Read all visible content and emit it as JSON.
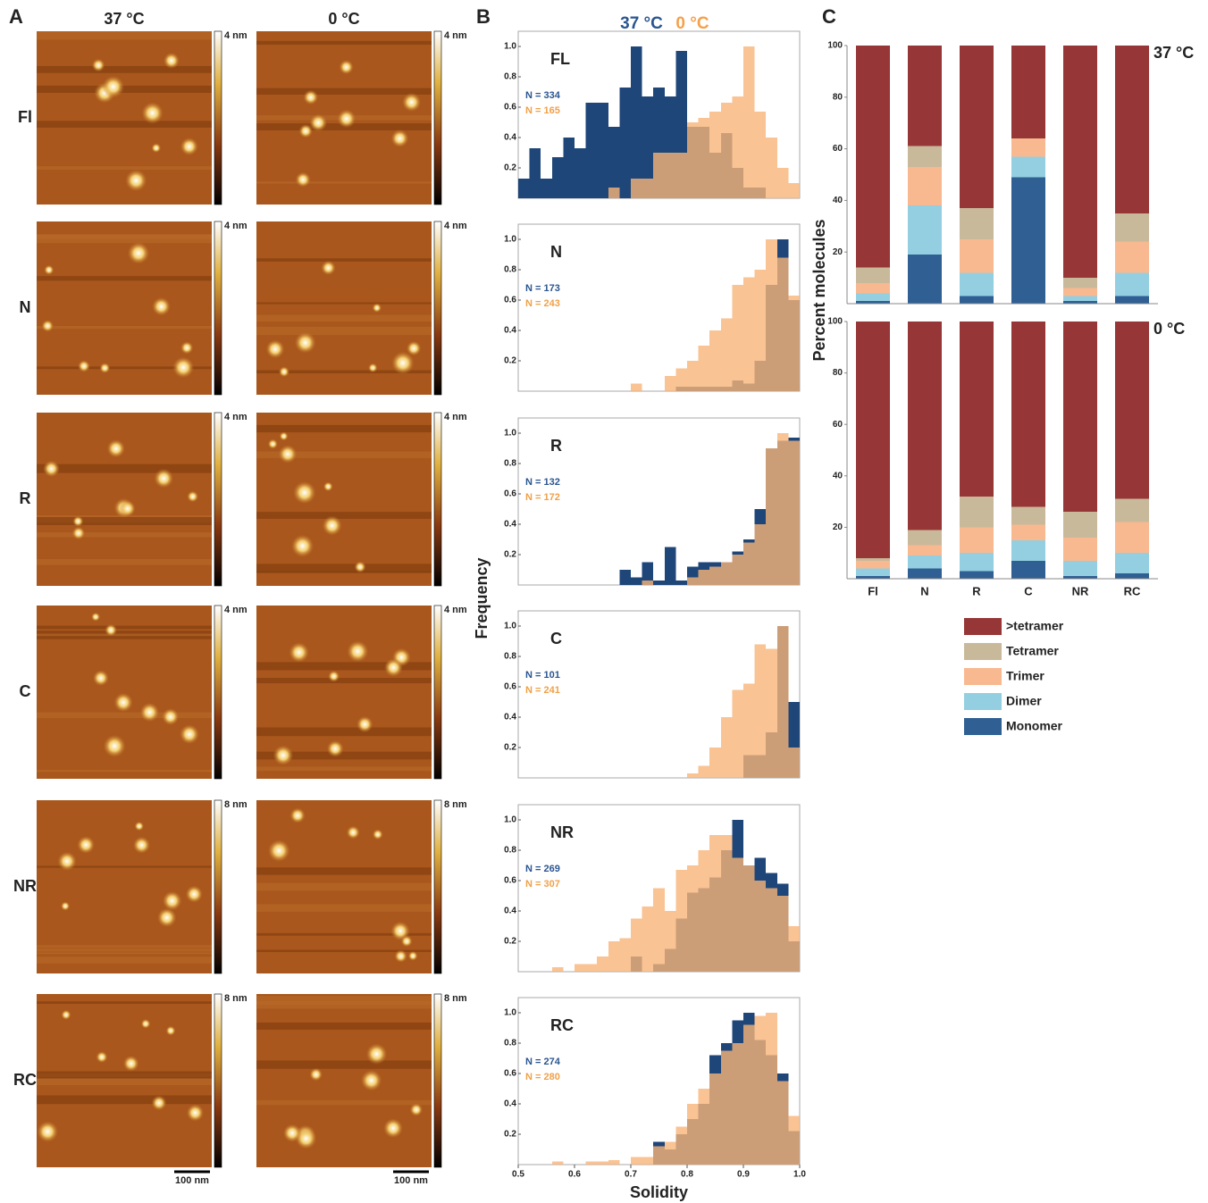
{
  "panels": {
    "a": "A",
    "b": "B",
    "c": "C"
  },
  "figure_a": {
    "columns": [
      "37 °C",
      "0 °C"
    ],
    "rows": [
      {
        "label": "Fl",
        "scale": "4 nm"
      },
      {
        "label": "N",
        "scale": "4 nm"
      },
      {
        "label": "R",
        "scale": "4 nm"
      },
      {
        "label": "C",
        "scale": "4 nm"
      },
      {
        "label": "NR",
        "scale": "8 nm"
      },
      {
        "label": "RC",
        "scale": "8 nm"
      }
    ],
    "scale_bar": "100 nm"
  },
  "chart_data": [
    {
      "type": "histogram",
      "title": "FL",
      "ylabel": "Frequency",
      "xlim": [
        0.5,
        1
      ],
      "ylim": [
        0,
        1.1
      ],
      "yticks": [
        0.2,
        0.4,
        0.6,
        0.8,
        {
          "value": 1,
          "label": "1.0"
        }
      ],
      "bins": [
        0.5,
        0.52,
        0.54,
        0.56,
        0.58,
        0.6,
        0.62,
        0.64,
        0.66,
        0.68,
        0.7,
        0.72,
        0.74,
        0.76,
        0.78,
        0.8,
        0.82,
        0.84,
        0.86,
        0.88,
        0.9,
        0.92,
        0.94,
        0.96,
        0.98,
        1
      ],
      "series": [
        {
          "name": "37 °C",
          "color": "#1f4679",
          "n_label": "N = 334",
          "values": [
            0.13,
            0.33,
            0.13,
            0.27,
            0.4,
            0.33,
            0.63,
            0.63,
            0.47,
            0.73,
            1,
            0.67,
            0.73,
            0.67,
            0.97,
            0.47,
            0.47,
            0.3,
            0.43,
            0.2,
            0.07,
            0.07,
            0,
            0,
            0
          ]
        },
        {
          "name": "0 °C",
          "color": "#f8b478",
          "n_label": "N = 165",
          "values": [
            0,
            0,
            0,
            0,
            0,
            0,
            0,
            0,
            0.07,
            0,
            0.13,
            0.13,
            0.3,
            0.3,
            0.3,
            0.5,
            0.53,
            0.57,
            0.63,
            0.67,
            1,
            0.57,
            0.4,
            0.2,
            0.1
          ]
        }
      ]
    },
    {
      "type": "histogram",
      "title": "N",
      "xlim": [
        0.5,
        1
      ],
      "ylim": [
        0,
        1.1
      ],
      "yticks": [
        0.2,
        0.4,
        0.6,
        0.8,
        {
          "value": 1,
          "label": "1.0"
        }
      ],
      "bins": [
        0.5,
        0.52,
        0.54,
        0.56,
        0.58,
        0.6,
        0.62,
        0.64,
        0.66,
        0.68,
        0.7,
        0.72,
        0.74,
        0.76,
        0.78,
        0.8,
        0.82,
        0.84,
        0.86,
        0.88,
        0.9,
        0.92,
        0.94,
        0.96,
        0.98,
        1
      ],
      "series": [
        {
          "color": "#1f4679",
          "n_label": "N = 173",
          "values": [
            0,
            0,
            0,
            0,
            0,
            0,
            0,
            0,
            0,
            0,
            0,
            0,
            0,
            0,
            0.03,
            0.03,
            0.03,
            0.03,
            0.03,
            0.07,
            0.05,
            0.2,
            0.7,
            1,
            0.6
          ]
        },
        {
          "color": "#f8b478",
          "n_label": "N = 243",
          "values": [
            0,
            0,
            0,
            0,
            0,
            0,
            0,
            0,
            0,
            0,
            0.05,
            0,
            0,
            0.1,
            0.15,
            0.2,
            0.3,
            0.4,
            0.48,
            0.7,
            0.75,
            0.8,
            1,
            0.88,
            0.63
          ]
        }
      ]
    },
    {
      "type": "histogram",
      "title": "R",
      "xlim": [
        0.5,
        1
      ],
      "ylim": [
        0,
        1.1
      ],
      "yticks": [
        0.2,
        0.4,
        0.6,
        0.8,
        {
          "value": 1,
          "label": "1.0"
        }
      ],
      "bins": [
        0.5,
        0.52,
        0.54,
        0.56,
        0.58,
        0.6,
        0.62,
        0.64,
        0.66,
        0.68,
        0.7,
        0.72,
        0.74,
        0.76,
        0.78,
        0.8,
        0.82,
        0.84,
        0.86,
        0.88,
        0.9,
        0.92,
        0.94,
        0.96,
        0.98,
        1
      ],
      "series": [
        {
          "color": "#1f4679",
          "n_label": "N = 132",
          "values": [
            0,
            0,
            0,
            0,
            0,
            0,
            0,
            0,
            0,
            0.1,
            0.05,
            0.15,
            0.03,
            0.25,
            0.03,
            0.12,
            0.15,
            0.15,
            0.15,
            0.22,
            0.3,
            0.5,
            0.9,
            0.95,
            0.97
          ]
        },
        {
          "color": "#f8b478",
          "n_label": "N = 172",
          "values": [
            0,
            0,
            0,
            0,
            0,
            0,
            0,
            0,
            0,
            0,
            0,
            0.03,
            0,
            0,
            0,
            0.05,
            0.1,
            0.12,
            0.15,
            0.2,
            0.28,
            0.4,
            0.9,
            1,
            0.95
          ]
        }
      ]
    },
    {
      "type": "histogram",
      "title": "C",
      "xlim": [
        0.5,
        1
      ],
      "ylim": [
        0,
        1.1
      ],
      "yticks": [
        0.2,
        0.4,
        0.6,
        0.8,
        {
          "value": 1,
          "label": "1.0"
        }
      ],
      "bins": [
        0.5,
        0.52,
        0.54,
        0.56,
        0.58,
        0.6,
        0.62,
        0.64,
        0.66,
        0.68,
        0.7,
        0.72,
        0.74,
        0.76,
        0.78,
        0.8,
        0.82,
        0.84,
        0.86,
        0.88,
        0.9,
        0.92,
        0.94,
        0.96,
        0.98,
        1
      ],
      "series": [
        {
          "color": "#1f4679",
          "n_label": "N = 101",
          "values": [
            0,
            0,
            0,
            0,
            0,
            0,
            0,
            0,
            0,
            0,
            0,
            0,
            0,
            0,
            0,
            0,
            0,
            0,
            0,
            0,
            0.15,
            0.15,
            0.3,
            1,
            0.5
          ]
        },
        {
          "color": "#f8b478",
          "n_label": "N = 241",
          "values": [
            0,
            0,
            0,
            0,
            0,
            0,
            0,
            0,
            0,
            0,
            0,
            0,
            0,
            0,
            0,
            0.03,
            0.08,
            0.2,
            0.4,
            0.58,
            0.62,
            0.88,
            0.85,
            1,
            0.2
          ]
        }
      ]
    },
    {
      "type": "histogram",
      "title": "NR",
      "xlim": [
        0.5,
        1
      ],
      "ylim": [
        0,
        1.1
      ],
      "yticks": [
        0.2,
        0.4,
        0.6,
        0.8,
        {
          "value": 1,
          "label": "1.0"
        }
      ],
      "bins": [
        0.5,
        0.52,
        0.54,
        0.56,
        0.58,
        0.6,
        0.62,
        0.64,
        0.66,
        0.68,
        0.7,
        0.72,
        0.74,
        0.76,
        0.78,
        0.8,
        0.82,
        0.84,
        0.86,
        0.88,
        0.9,
        0.92,
        0.94,
        0.96,
        0.98,
        1
      ],
      "series": [
        {
          "color": "#1f4679",
          "n_label": "N = 269",
          "values": [
            0,
            0,
            0,
            0,
            0,
            0,
            0,
            0,
            0,
            0,
            0.1,
            0,
            0.05,
            0.15,
            0.35,
            0.52,
            0.55,
            0.62,
            0.8,
            1,
            0.7,
            0.75,
            0.65,
            0.58,
            0.2
          ]
        },
        {
          "color": "#f8b478",
          "n_label": "N = 307",
          "values": [
            0,
            0,
            0,
            0.03,
            0,
            0.05,
            0.05,
            0.1,
            0.2,
            0.22,
            0.35,
            0.43,
            0.55,
            0.4,
            0.67,
            0.7,
            0.8,
            0.9,
            0.9,
            0.75,
            0.7,
            0.6,
            0.55,
            0.5,
            0.3
          ]
        }
      ]
    },
    {
      "type": "histogram",
      "title": "RC",
      "xlabel": "Solidity",
      "xlim": [
        0.5,
        1
      ],
      "ylim": [
        0,
        1.1
      ],
      "xticks": [
        0.5,
        0.6,
        0.7,
        0.8,
        0.9,
        {
          "value": 1,
          "label": "1.0"
        }
      ],
      "yticks": [
        0.2,
        0.4,
        0.6,
        0.8,
        {
          "value": 1,
          "label": "1.0"
        }
      ],
      "bins": [
        0.5,
        0.52,
        0.54,
        0.56,
        0.58,
        0.6,
        0.62,
        0.64,
        0.66,
        0.68,
        0.7,
        0.72,
        0.74,
        0.76,
        0.78,
        0.8,
        0.82,
        0.84,
        0.86,
        0.88,
        0.9,
        0.92,
        0.94,
        0.96,
        0.98,
        1
      ],
      "series": [
        {
          "color": "#1f4679",
          "n_label": "N = 274",
          "values": [
            0,
            0,
            0,
            0,
            0,
            0,
            0,
            0,
            0,
            0,
            0,
            0,
            0.15,
            0.1,
            0.2,
            0.3,
            0.4,
            0.72,
            0.8,
            0.95,
            1,
            0.82,
            0.72,
            0.6,
            0.22
          ]
        },
        {
          "color": "#f8b478",
          "n_label": "N = 280",
          "values": [
            0,
            0,
            0,
            0.02,
            0,
            0,
            0.02,
            0.02,
            0.03,
            0,
            0.05,
            0.05,
            0.12,
            0.15,
            0.25,
            0.4,
            0.5,
            0.6,
            0.75,
            0.8,
            0.92,
            0.98,
            1,
            0.55,
            0.32
          ]
        }
      ]
    },
    {
      "type": "stacked_bar",
      "title": "37 °C",
      "ylabel": "Percent molecules",
      "ylim": [
        0,
        100
      ],
      "yticks": [
        20,
        40,
        60,
        80,
        100
      ],
      "categories": [
        null,
        null,
        null,
        null,
        null,
        null
      ],
      "series": [
        {
          "name": "Monomer",
          "color": "#2f5f93",
          "values": [
            1,
            19,
            3,
            49,
            1,
            3
          ]
        },
        {
          "name": "Dimer",
          "color": "#93cfe0",
          "values": [
            3,
            19,
            9,
            8,
            2,
            9
          ]
        },
        {
          "name": "Trimer",
          "color": "#f8b990",
          "values": [
            4,
            15,
            13,
            7,
            3,
            12
          ]
        },
        {
          "name": "Tetramer",
          "color": "#c9b99b",
          "values": [
            6,
            8,
            12,
            0,
            4,
            11
          ]
        },
        {
          "name": ">tetramer",
          "color": "#963636",
          "values": [
            86,
            39,
            63,
            36,
            90,
            65
          ]
        }
      ]
    },
    {
      "type": "stacked_bar",
      "title": "0 °C",
      "ylim": [
        0,
        100
      ],
      "yticks": [
        20,
        40,
        60,
        80,
        100
      ],
      "categories": [
        "Fl",
        "N",
        "R",
        "C",
        "NR",
        "RC"
      ],
      "series": [
        {
          "color": "#2f5f93",
          "values": [
            1,
            4,
            3,
            7,
            1,
            2
          ]
        },
        {
          "color": "#93cfe0",
          "values": [
            3,
            5,
            7,
            8,
            6,
            8
          ]
        },
        {
          "color": "#f8b990",
          "values": [
            3,
            4,
            10,
            6,
            9,
            12
          ]
        },
        {
          "color": "#c9b99b",
          "values": [
            1,
            6,
            12,
            7,
            10,
            9
          ]
        },
        {
          "color": "#963636",
          "values": [
            92,
            81,
            68,
            72,
            74,
            69
          ]
        }
      ]
    }
  ]
}
